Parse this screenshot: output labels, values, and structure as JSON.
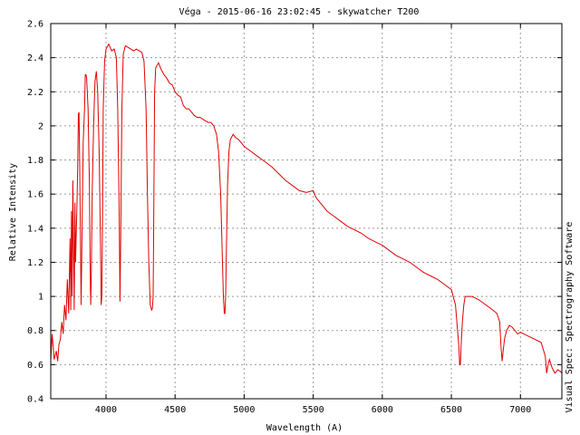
{
  "chart_data": {
    "type": "line",
    "title": "Véga - 2015-06-16 23:02:45 - skywatcher T200",
    "xlabel": "Wavelength (A)",
    "ylabel": "Relative Intensity",
    "side_label": "Visual Spec: Spectrography Software",
    "xlim": [
      3600,
      7300
    ],
    "ylim": [
      0.4,
      2.6
    ],
    "x_ticks": [
      4000,
      4500,
      5000,
      5500,
      6000,
      6500,
      7000
    ],
    "y_ticks": [
      0.4,
      0.6,
      0.8,
      1.0,
      1.2,
      1.4,
      1.6,
      1.8,
      2.0,
      2.2,
      2.4,
      2.6
    ],
    "x_tick_labels": [
      "4000",
      "4500",
      "5000",
      "5500",
      "6000",
      "6500",
      "7000"
    ],
    "y_tick_labels": [
      "0.4",
      "0.6",
      "0.8",
      "1",
      "1.2",
      "1.4",
      "1.6",
      "1.8",
      "2",
      "2.2",
      "2.4",
      "2.6"
    ],
    "grid": true,
    "line_color": "#e00000",
    "series": [
      {
        "x": [
          3600,
          3610,
          3625,
          3640,
          3650,
          3660,
          3670,
          3680,
          3690,
          3700,
          3710,
          3720,
          3730,
          3740,
          3745,
          3750,
          3755,
          3760,
          3770,
          3775,
          3780,
          3790,
          3795,
          3800,
          3805,
          3810,
          3820,
          3835,
          3845,
          3850,
          3855,
          3860,
          3870,
          3880,
          3885,
          3889,
          3893,
          3900,
          3910,
          3920,
          3930,
          3940,
          3950,
          3960,
          3965,
          3970,
          3975,
          3980,
          3990,
          4000,
          4020,
          4040,
          4060,
          4075,
          4085,
          4095,
          4101,
          4107,
          4115,
          4125,
          4140,
          4160,
          4180,
          4200,
          4220,
          4240,
          4260,
          4275,
          4290,
          4300,
          4310,
          4320,
          4330,
          4336,
          4341,
          4346,
          4352,
          4360,
          4380,
          4400,
          4420,
          4440,
          4460,
          4480,
          4500,
          4520,
          4540,
          4560,
          4580,
          4600,
          4620,
          4640,
          4660,
          4680,
          4700,
          4720,
          4740,
          4760,
          4780,
          4800,
          4815,
          4830,
          4840,
          4850,
          4856,
          4861,
          4866,
          4872,
          4880,
          4890,
          4900,
          4920,
          4940,
          4960,
          4980,
          5000,
          5050,
          5100,
          5150,
          5200,
          5250,
          5300,
          5350,
          5400,
          5450,
          5500,
          5520,
          5550,
          5600,
          5650,
          5700,
          5750,
          5800,
          5850,
          5900,
          5950,
          6000,
          6050,
          6100,
          6150,
          6200,
          6250,
          6300,
          6350,
          6400,
          6450,
          6500,
          6530,
          6545,
          6555,
          6560,
          6565,
          6570,
          6580,
          6590,
          6600,
          6650,
          6700,
          6750,
          6800,
          6830,
          6850,
          6860,
          6868,
          6875,
          6885,
          6900,
          6920,
          6940,
          6960,
          6980,
          7000,
          7050,
          7100,
          7150,
          7180,
          7190,
          7200,
          7210,
          7230,
          7250,
          7270,
          7290,
          7300
        ],
        "y": [
          0.62,
          0.78,
          0.63,
          0.68,
          0.62,
          0.72,
          0.75,
          0.85,
          0.78,
          0.95,
          0.86,
          1.1,
          0.9,
          1.34,
          0.92,
          1.5,
          1.0,
          1.68,
          0.92,
          1.55,
          1.2,
          1.55,
          1.75,
          2.07,
          2.08,
          1.75,
          0.95,
          1.9,
          2.1,
          2.3,
          2.3,
          2.28,
          2.1,
          1.65,
          1.2,
          0.95,
          1.1,
          1.6,
          2.0,
          2.26,
          2.32,
          2.2,
          1.85,
          1.3,
          0.95,
          1.0,
          1.5,
          2.1,
          2.38,
          2.45,
          2.48,
          2.44,
          2.45,
          2.4,
          2.1,
          1.5,
          0.97,
          1.4,
          2.1,
          2.42,
          2.47,
          2.46,
          2.45,
          2.44,
          2.45,
          2.44,
          2.43,
          2.38,
          2.1,
          1.6,
          1.2,
          0.95,
          0.92,
          0.93,
          1.0,
          1.5,
          2.2,
          2.34,
          2.37,
          2.33,
          2.3,
          2.28,
          2.25,
          2.24,
          2.2,
          2.18,
          2.17,
          2.12,
          2.1,
          2.1,
          2.08,
          2.06,
          2.05,
          2.05,
          2.04,
          2.03,
          2.02,
          2.02,
          2.0,
          1.95,
          1.85,
          1.6,
          1.3,
          1.0,
          0.9,
          0.9,
          1.0,
          1.3,
          1.65,
          1.85,
          1.92,
          1.95,
          1.93,
          1.92,
          1.9,
          1.88,
          1.85,
          1.82,
          1.79,
          1.76,
          1.72,
          1.68,
          1.65,
          1.62,
          1.61,
          1.62,
          1.58,
          1.55,
          1.5,
          1.47,
          1.44,
          1.41,
          1.39,
          1.37,
          1.34,
          1.32,
          1.3,
          1.27,
          1.24,
          1.22,
          1.2,
          1.17,
          1.14,
          1.12,
          1.1,
          1.07,
          1.04,
          0.95,
          0.8,
          0.7,
          0.6,
          0.6,
          0.7,
          0.85,
          0.95,
          1.0,
          1.0,
          0.98,
          0.95,
          0.92,
          0.9,
          0.85,
          0.7,
          0.62,
          0.68,
          0.75,
          0.8,
          0.83,
          0.82,
          0.8,
          0.78,
          0.79,
          0.77,
          0.75,
          0.73,
          0.65,
          0.55,
          0.6,
          0.63,
          0.58,
          0.55,
          0.57,
          0.56,
          0.55
        ]
      }
    ]
  }
}
